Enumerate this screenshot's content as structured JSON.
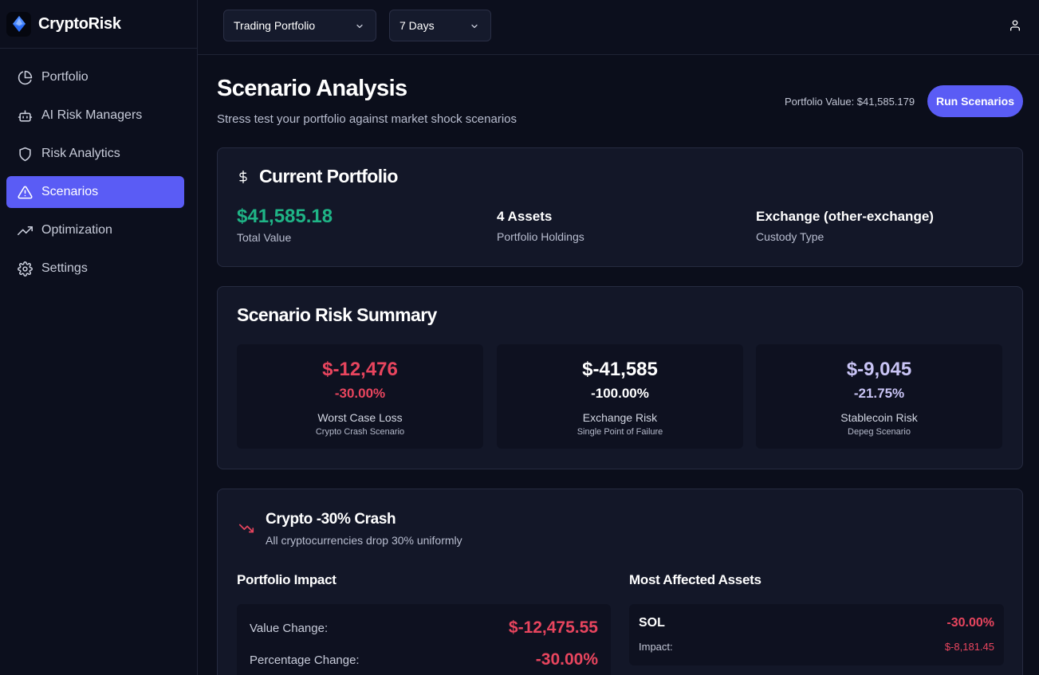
{
  "brand": {
    "name": "CryptoRisk"
  },
  "sidebar": {
    "items": [
      {
        "label": "Portfolio",
        "icon": "pie-chart-icon"
      },
      {
        "label": "AI Risk Managers",
        "icon": "bot-icon"
      },
      {
        "label": "Risk Analytics",
        "icon": "shield-icon"
      },
      {
        "label": "Scenarios",
        "icon": "alert-triangle-icon",
        "active": true
      },
      {
        "label": "Optimization",
        "icon": "trending-up-icon"
      },
      {
        "label": "Settings",
        "icon": "gear-icon"
      }
    ]
  },
  "topbar": {
    "portfolio_select": "Trading Portfolio",
    "period_select": "7 Days"
  },
  "header": {
    "title": "Scenario Analysis",
    "subtitle": "Stress test your portfolio against market shock scenarios",
    "portfolio_value": "Portfolio Value: $41,585.179",
    "run_button": "Run Scenarios"
  },
  "current_portfolio": {
    "title": "Current Portfolio",
    "total_value": "$41,585.18",
    "total_value_label": "Total Value",
    "assets": "4 Assets",
    "assets_label": "Portfolio Holdings",
    "custody": "Exchange (other-exchange)",
    "custody_label": "Custody Type"
  },
  "risk_summary": {
    "title": "Scenario Risk Summary",
    "boxes": [
      {
        "value": "$-12,476",
        "percent": "-30.00%",
        "label": "Worst Case Loss",
        "sub": "Crypto Crash Scenario",
        "color": "#e8455e"
      },
      {
        "value": "$-41,585",
        "percent": "-100.00%",
        "label": "Exchange Risk",
        "sub": "Single Point of Failure",
        "color": "#ffffff"
      },
      {
        "value": "$-9,045",
        "percent": "-21.75%",
        "label": "Stablecoin Risk",
        "sub": "Depeg Scenario",
        "color": "#c9c4f5"
      }
    ]
  },
  "scenario": {
    "title": "Crypto -30% Crash",
    "description": "All cryptocurrencies drop 30% uniformly",
    "impact_title": "Portfolio Impact",
    "value_change_label": "Value Change:",
    "value_change": "$-12,475.55",
    "percentage_change_label": "Percentage Change:",
    "percentage_change": "-30.00%",
    "affected_title": "Most Affected Assets",
    "asset": {
      "symbol": "SOL",
      "change": "-30.00%",
      "impact_label": "Impact:",
      "impact": "$-8,181.45"
    }
  }
}
